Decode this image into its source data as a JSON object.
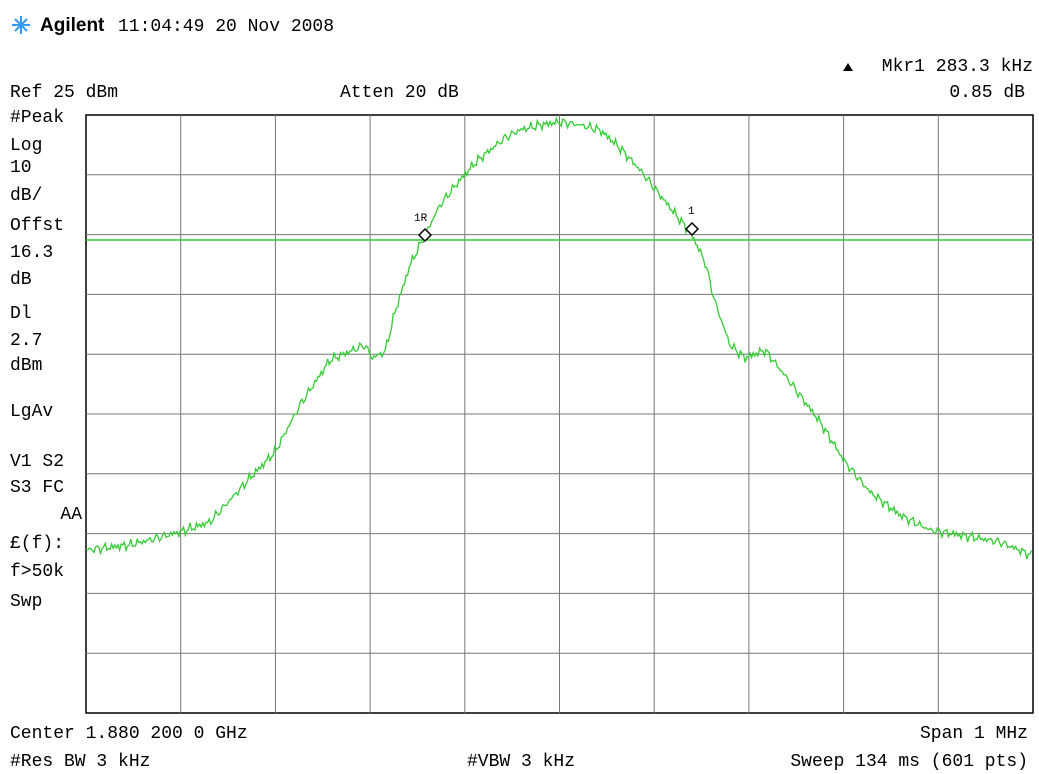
{
  "header": {
    "brand": "Agilent",
    "time": "11:04:49  20 Nov 2008"
  },
  "marker": {
    "label": "Mkr1  283.3 kHz",
    "delta": "0.85 dB",
    "ref_tag": "1R",
    "tag": "1"
  },
  "top": {
    "ref": "Ref 25 dBm",
    "atten": "Atten 20 dB"
  },
  "left": [
    "#Peak",
    "Log",
    "10",
    "dB/",
    "Offst",
    "16.3",
    "dB",
    "Dl",
    "2.7",
    "dBm",
    "LgAv",
    "V1  S2",
    "S3  FC",
    "AA",
    "£(f):",
    "f>50k",
    "Swp"
  ],
  "bottom": {
    "center": "Center 1.880 200 0 GHz",
    "span": "Span 1 MHz",
    "rbw": "#Res BW 3 kHz",
    "vbw": "#VBW 3 kHz",
    "sweep": "Sweep 134 ms (601 pts)"
  }
}
